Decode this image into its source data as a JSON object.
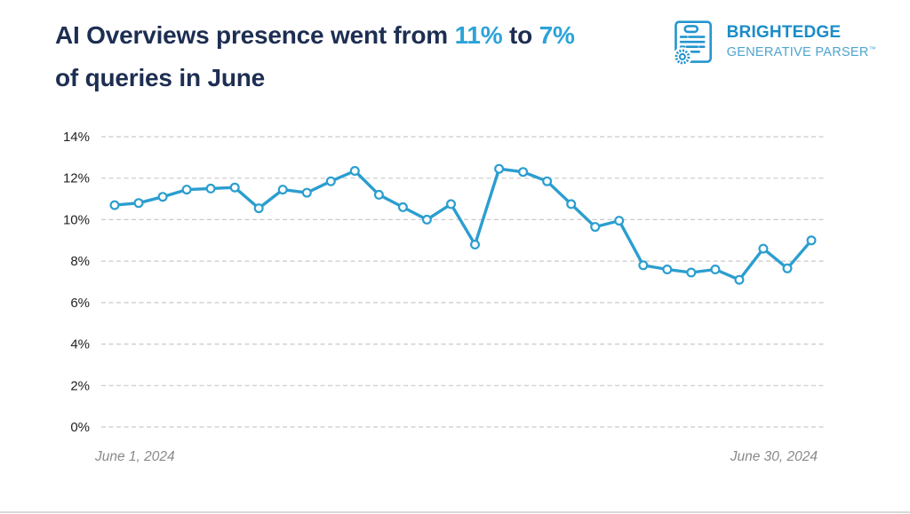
{
  "title": {
    "part1": "AI Overviews presence went from ",
    "value1": "11%",
    "part2": " to ",
    "value2": "7%",
    "line2": "of queries in June"
  },
  "logo": {
    "brand": "BRIGHTEDGE",
    "product": "GENERATIVE PARSER",
    "trademark": "™",
    "icon": "certificate-document-with-seal"
  },
  "chart_data": {
    "type": "line",
    "title": "AI Overviews presence went from 11% to 7% of queries in June",
    "x_start_label": "June 1, 2024",
    "x_end_label": "June 30, 2024",
    "x_description": "Daily values, June 1 through June 30, 2024 (30 points)",
    "values": [
      10.7,
      10.8,
      11.1,
      11.45,
      11.5,
      11.55,
      10.55,
      11.45,
      11.3,
      11.85,
      12.35,
      11.2,
      10.6,
      10.0,
      10.75,
      8.8,
      12.45,
      12.3,
      11.85,
      10.75,
      9.65,
      9.95,
      7.8,
      7.6,
      7.45,
      7.6,
      7.1,
      8.6,
      7.65,
      9.0
    ],
    "ylabel": "",
    "ylim": [
      0,
      14
    ],
    "yticks": [
      0,
      2,
      4,
      6,
      8,
      10,
      12,
      14
    ],
    "ytick_suffix": "%",
    "grid": "horizontal-dashed",
    "legend": "none",
    "line_color": "#2b9ecf",
    "marker": "open-circle"
  },
  "colors": {
    "background": "#ffffff",
    "title_dark": "#1d2e52",
    "accent_blue": "#2ba3d8",
    "logo_blue": "#1a8cc7",
    "logo_blue_light": "#4fa5cf",
    "grid": "#c9c9c9",
    "axis_text": "#222222",
    "date_text": "#8a8a8a",
    "divider": "#d9d9d9",
    "line_color": "#2b9ecf"
  }
}
